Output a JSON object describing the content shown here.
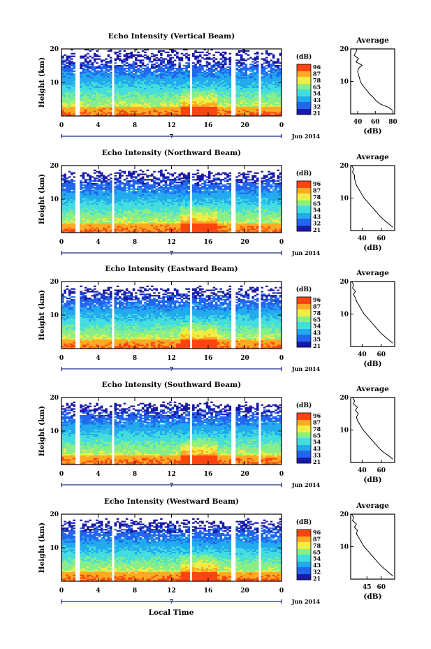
{
  "chart_data": [
    {
      "type": "heatmap",
      "title": "Echo Intensity (Vertical Beam)",
      "ylabel": "Height (km)",
      "xticks": [
        "0",
        "4",
        "8",
        "12",
        "16",
        "20",
        "0"
      ],
      "xlim": [
        0,
        24
      ],
      "ylim": [
        0,
        20
      ],
      "yticks": [
        "20",
        "10"
      ],
      "colorbar_unit": "(dB)",
      "colorbar_ticks": [
        "96",
        "87",
        "78",
        "65",
        "54",
        "43",
        "32",
        "21"
      ],
      "gaps_hours": [
        [
          1.6,
          1.9
        ],
        [
          5.5,
          5.8
        ],
        [
          13.9,
          14.3
        ],
        [
          18.6,
          19.1
        ],
        [
          20.4,
          20.6
        ],
        [
          21.6,
          21.8
        ]
      ],
      "profile": {
        "title": "Average",
        "xlabel": "(dB)",
        "xticks": [
          "40",
          "60",
          "80"
        ],
        "yticks": [
          "20",
          "10"
        ],
        "heights": [
          1,
          2,
          3,
          4,
          5,
          6,
          7,
          8,
          9,
          10,
          11,
          12,
          13,
          14,
          15,
          16,
          17,
          18,
          19,
          20
        ],
        "values": [
          80,
          75,
          66,
          61,
          58,
          54,
          51,
          48,
          45,
          43,
          42,
          41,
          40,
          41,
          45,
          38,
          41,
          36,
          38,
          39
        ]
      }
    },
    {
      "type": "heatmap",
      "title": "Echo Intensity (Northward Beam)",
      "ylabel": "Height (km)",
      "xticks": [
        "0",
        "4",
        "8",
        "12",
        "16",
        "20",
        "0"
      ],
      "xlim": [
        0,
        24
      ],
      "ylim": [
        0,
        20
      ],
      "yticks": [
        "20",
        "10"
      ],
      "colorbar_unit": "(dB)",
      "colorbar_ticks": [
        "96",
        "87",
        "78",
        "65",
        "54",
        "43",
        "32",
        "21"
      ],
      "gaps_hours": [
        [
          1.6,
          1.9
        ],
        [
          5.5,
          5.8
        ],
        [
          13.9,
          14.3
        ],
        [
          18.6,
          19.1
        ],
        [
          20.4,
          20.6
        ],
        [
          21.6,
          21.8
        ]
      ],
      "profile": {
        "title": "Average",
        "xlabel": "(dB)",
        "xticks": [
          "40",
          "60"
        ],
        "yticks": [
          "20",
          "10"
        ],
        "heights": [
          1,
          2,
          3,
          4,
          5,
          6,
          7,
          8,
          9,
          10,
          11,
          12,
          13,
          14,
          15,
          16,
          17,
          18,
          19,
          20
        ],
        "values": [
          72,
          68,
          64,
          60,
          57,
          54,
          51,
          48,
          45,
          42,
          40,
          38,
          36,
          34,
          33,
          32,
          32,
          30,
          31,
          29
        ]
      }
    },
    {
      "type": "heatmap",
      "title": "Echo Intensity (Eastward Beam)",
      "ylabel": "Height (km)",
      "xticks": [
        "0",
        "4",
        "8",
        "12",
        "16",
        "20",
        "0"
      ],
      "xlim": [
        0,
        24
      ],
      "ylim": [
        0,
        20
      ],
      "yticks": [
        "20",
        "10"
      ],
      "colorbar_unit": "(dB)",
      "colorbar_ticks": [
        "96",
        "87",
        "78",
        "65",
        "54",
        "43",
        "35",
        "21"
      ],
      "gaps_hours": [
        [
          1.6,
          1.9
        ],
        [
          5.5,
          5.8
        ],
        [
          13.9,
          14.3
        ],
        [
          18.6,
          19.1
        ],
        [
          20.4,
          20.6
        ],
        [
          21.6,
          21.8
        ]
      ],
      "profile": {
        "title": "Average",
        "xlabel": "(dB)",
        "xticks": [
          "40",
          "60"
        ],
        "yticks": [
          "20",
          "10"
        ],
        "heights": [
          1,
          2,
          3,
          4,
          5,
          6,
          7,
          8,
          9,
          10,
          11,
          12,
          13,
          14,
          15,
          16,
          17,
          18,
          19,
          20
        ],
        "values": [
          72,
          68,
          64,
          60,
          57,
          54,
          51,
          48,
          45,
          42,
          40,
          38,
          36,
          34,
          33,
          31,
          33,
          30,
          31,
          29
        ]
      }
    },
    {
      "type": "heatmap",
      "title": "Echo Intensity (Southward Beam)",
      "ylabel": "Height (km)",
      "xticks": [
        "0",
        "4",
        "8",
        "12",
        "16",
        "20",
        "0"
      ],
      "xlim": [
        0,
        24
      ],
      "ylim": [
        0,
        20
      ],
      "yticks": [
        "20",
        "10"
      ],
      "colorbar_unit": "(dB)",
      "colorbar_ticks": [
        "96",
        "87",
        "78",
        "65",
        "54",
        "43",
        "33",
        "21"
      ],
      "gaps_hours": [
        [
          1.6,
          1.9
        ],
        [
          5.5,
          5.8
        ],
        [
          13.9,
          14.3
        ],
        [
          18.6,
          19.1
        ],
        [
          20.4,
          20.6
        ],
        [
          21.6,
          21.8
        ]
      ],
      "profile": {
        "title": "Average",
        "xlabel": "(dB)",
        "xticks": [
          "40",
          "60"
        ],
        "yticks": [
          "20",
          "10"
        ],
        "heights": [
          1,
          2,
          3,
          4,
          5,
          6,
          7,
          8,
          9,
          10,
          11,
          12,
          13,
          14,
          15,
          16,
          17,
          18,
          19,
          20
        ],
        "values": [
          72,
          68,
          63,
          59,
          56,
          53,
          50,
          47,
          44,
          41,
          39,
          37,
          35,
          34,
          36,
          33,
          35,
          31,
          32,
          30
        ]
      }
    },
    {
      "type": "heatmap",
      "title": "Echo Intensity (Westward Beam)",
      "ylabel": "Height (km)",
      "xticks": [
        "0",
        "4",
        "8",
        "12",
        "16",
        "20",
        "0"
      ],
      "xlim": [
        0,
        24
      ],
      "ylim": [
        0,
        20
      ],
      "yticks": [
        "20",
        "10"
      ],
      "colorbar_unit": "(dB)",
      "colorbar_ticks": [
        "96",
        "87",
        "78",
        "65",
        "54",
        "43",
        "32",
        "21"
      ],
      "gaps_hours": [
        [
          1.6,
          1.9
        ],
        [
          5.5,
          5.8
        ],
        [
          13.9,
          14.3
        ],
        [
          18.6,
          19.1
        ],
        [
          20.4,
          20.6
        ],
        [
          21.6,
          21.8
        ]
      ],
      "profile": {
        "title": "Average",
        "xlabel": "(dB)",
        "xticks": [
          "45",
          "60"
        ],
        "yticks": [
          "20",
          "10"
        ],
        "heights": [
          1,
          2,
          3,
          4,
          5,
          6,
          7,
          8,
          9,
          10,
          11,
          12,
          13,
          14,
          15,
          16,
          17,
          18,
          19,
          20
        ],
        "values": [
          72,
          68,
          64,
          60,
          57,
          54,
          51,
          48,
          45,
          42,
          40,
          38,
          36,
          34,
          35,
          32,
          34,
          30,
          31,
          29
        ]
      }
    }
  ],
  "date_marker": "7",
  "date_label": "Jun 2014",
  "xlabel_bottom": "Local Time",
  "colors": {
    "axis": "#000000",
    "date_bar": "#1e2a8a",
    "colormap": [
      "#1a1aa8",
      "#2266ee",
      "#22aaee",
      "#44dddd",
      "#88ee88",
      "#eeee44",
      "#ffaa22",
      "#ff4411",
      "#dd1111"
    ]
  }
}
